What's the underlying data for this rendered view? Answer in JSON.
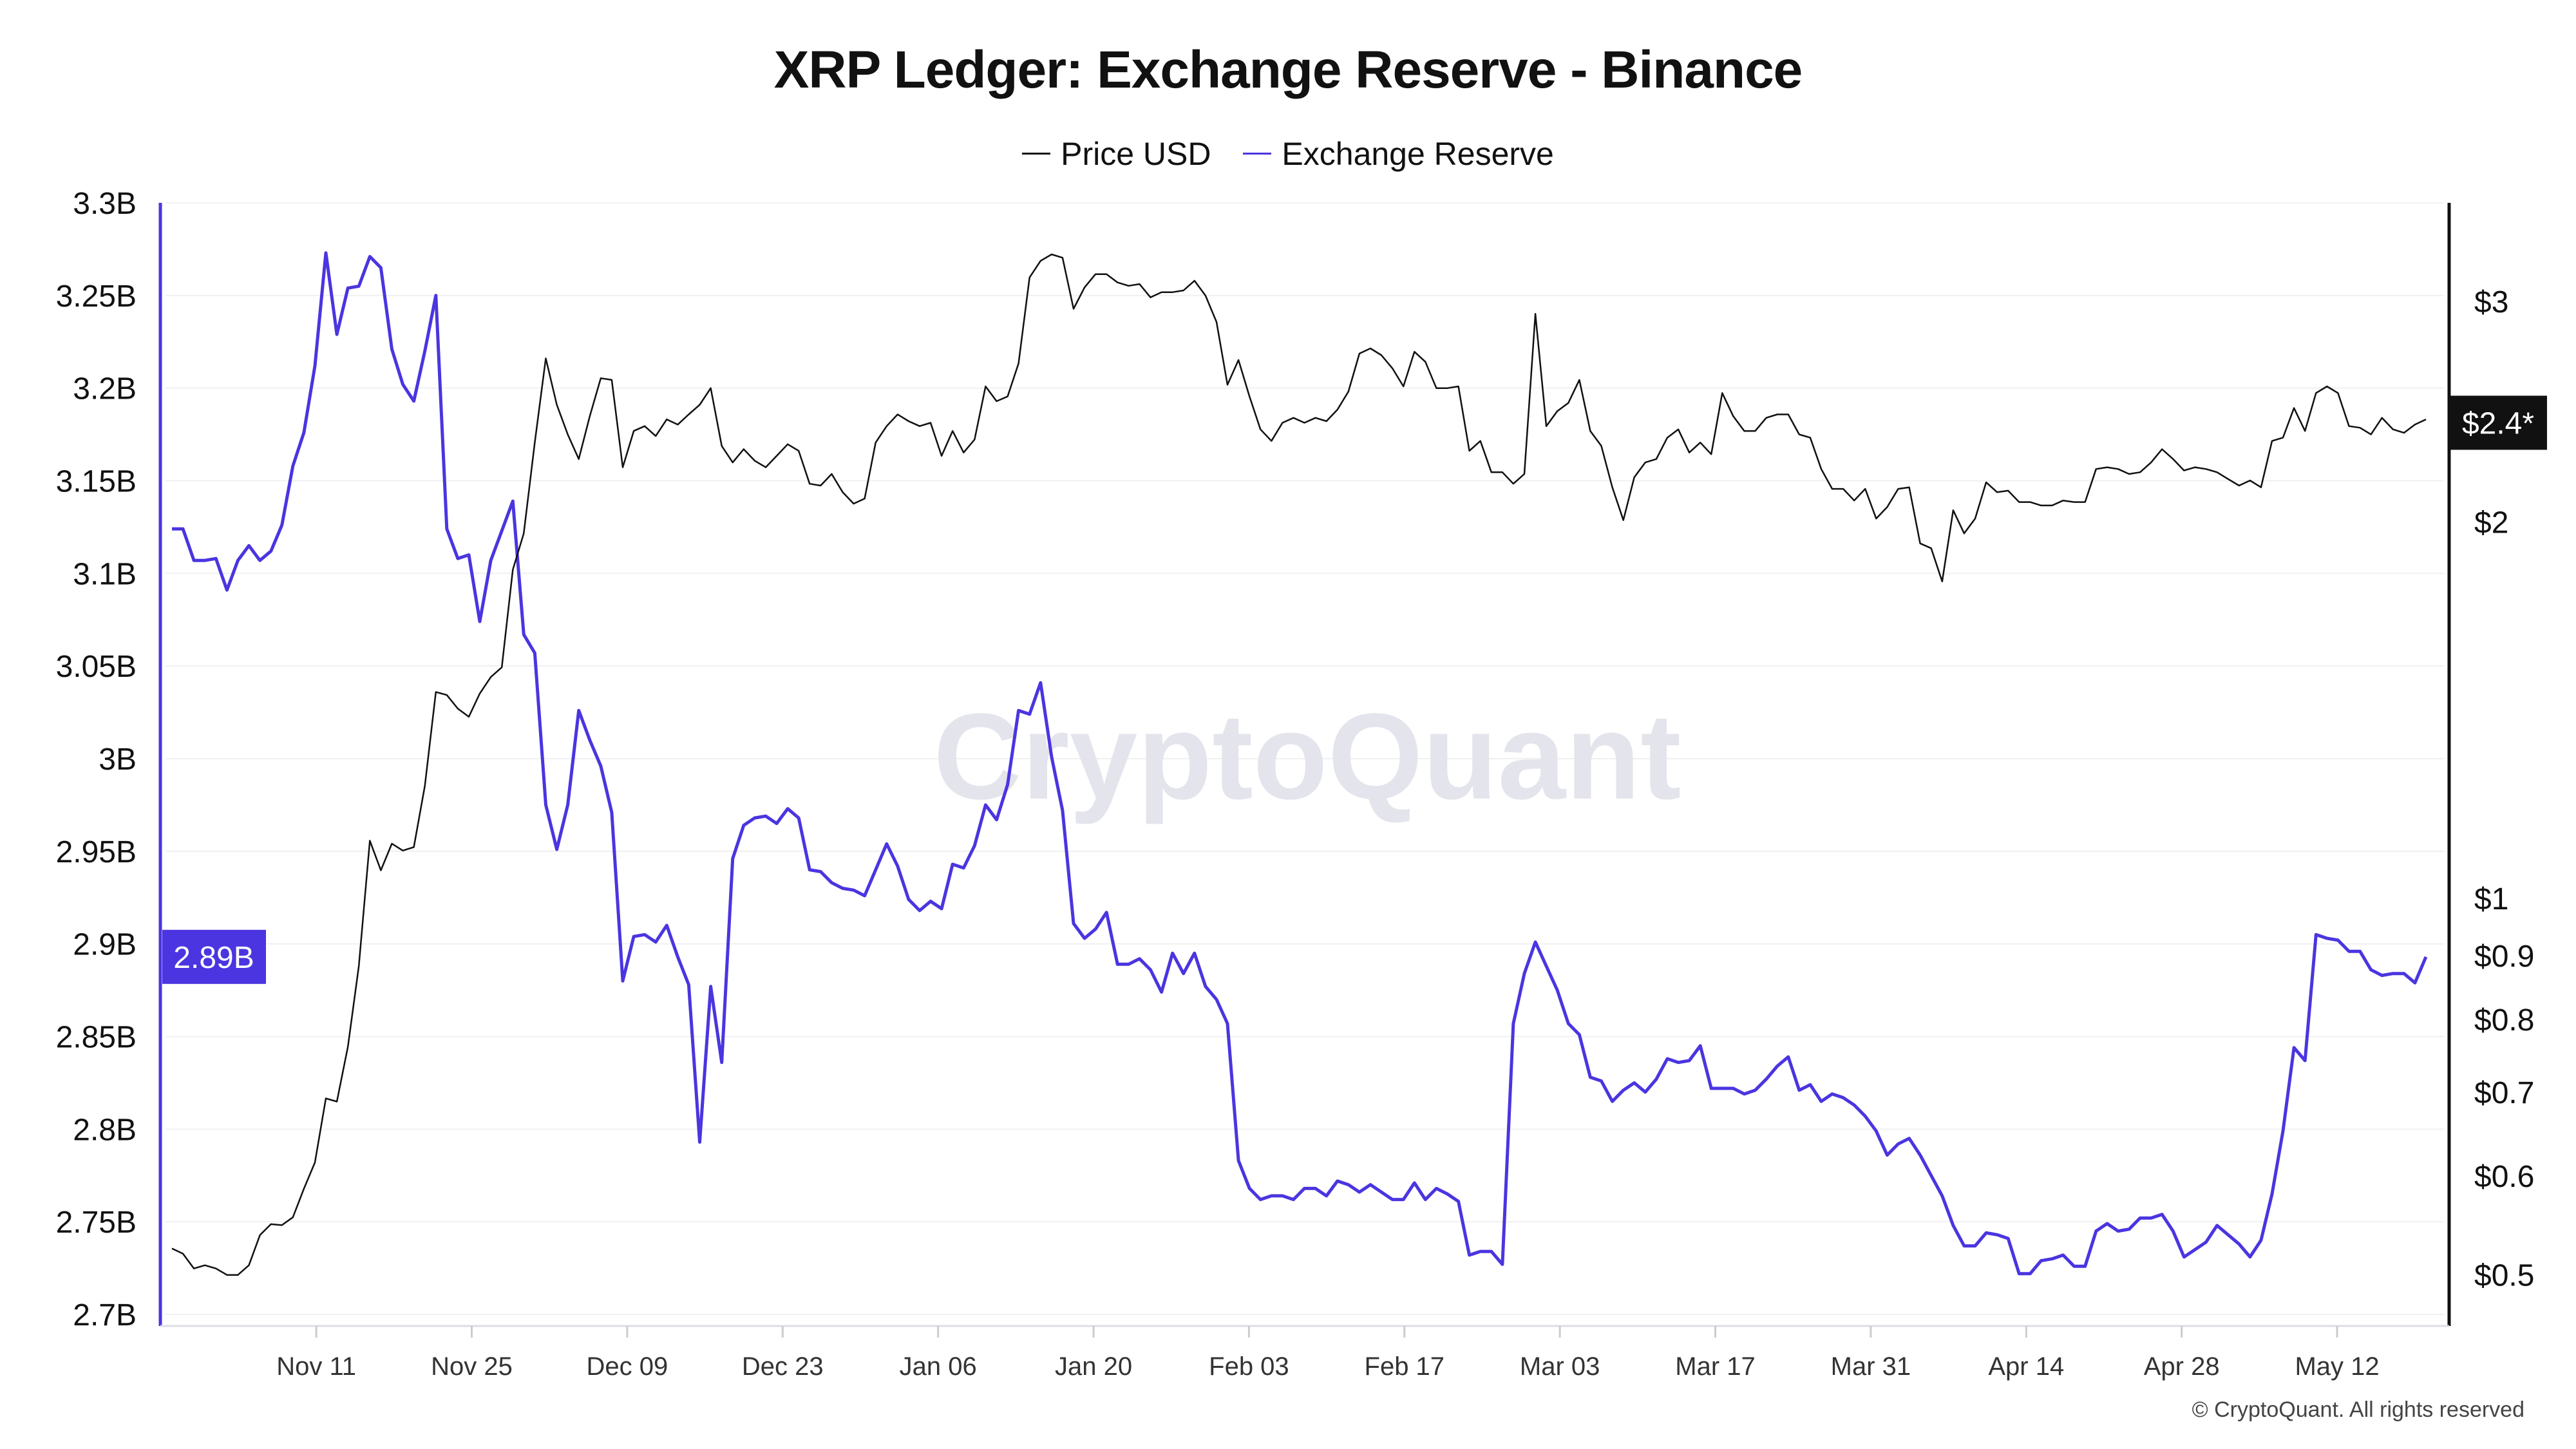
{
  "chart_data": {
    "type": "line",
    "title": "XRP Ledger: Exchange Reserve - Binance",
    "legend": {
      "placement": "top-center",
      "entries": [
        "Price USD",
        "Exchange Reserve"
      ]
    },
    "start_date": "2024-10-29",
    "end_date": "2025-05-20",
    "x_ticks": [
      "Nov 11",
      "Nov 25",
      "Dec 09",
      "Dec 23",
      "Jan 06",
      "Jan 20",
      "Feb 03",
      "Feb 17",
      "Mar 03",
      "Mar 17",
      "Mar 31",
      "Apr 14",
      "Apr 28",
      "May 12"
    ],
    "x_tick_day_offsets": [
      13,
      27,
      41,
      55,
      69,
      83,
      97,
      111,
      125,
      139,
      153,
      167,
      181,
      195
    ],
    "left_axis": {
      "ylim": [
        2.7,
        3.3
      ],
      "unit": "B",
      "ticks": [
        "3.3B",
        "3.25B",
        "3.2B",
        "3.15B",
        "3.1B",
        "3.05B",
        "3B",
        "2.95B",
        "2.9B",
        "2.85B",
        "2.8B",
        "2.75B",
        "2.7B"
      ],
      "tick_values": [
        3.3,
        3.25,
        3.2,
        3.15,
        3.1,
        3.05,
        3.0,
        2.95,
        2.9,
        2.85,
        2.8,
        2.75,
        2.7
      ],
      "current_label": "2.89B",
      "current_value": 2.893
    },
    "right_axis": {
      "scale": "log",
      "ticks": [
        "$3",
        "$2",
        "$1",
        "$0.9",
        "$0.8",
        "$0.7",
        "$0.6",
        "$0.5"
      ],
      "tick_values": [
        3,
        2,
        1,
        0.9,
        0.8,
        0.7,
        0.6,
        0.5
      ],
      "current_label": "$2.4*",
      "current_value": 2.4
    },
    "grid": true,
    "series": [
      {
        "name": "Exchange Reserve",
        "axis": "left",
        "color": "#4a35e0",
        "values": [
          3.124,
          3.124,
          3.107,
          3.107,
          3.108,
          3.091,
          3.107,
          3.115,
          3.107,
          3.112,
          3.126,
          3.158,
          3.176,
          3.212,
          3.273,
          3.229,
          3.254,
          3.255,
          3.271,
          3.265,
          3.221,
          3.202,
          3.193,
          3.22,
          3.25,
          3.124,
          3.108,
          3.11,
          3.074,
          3.107,
          3.123,
          3.139,
          3.067,
          3.057,
          2.975,
          2.951,
          2.975,
          3.026,
          3.01,
          2.996,
          2.971,
          2.88,
          2.904,
          2.905,
          2.901,
          2.91,
          2.893,
          2.878,
          2.793,
          2.877,
          2.836,
          2.946,
          2.964,
          2.968,
          2.969,
          2.965,
          2.973,
          2.968,
          2.94,
          2.939,
          2.933,
          2.93,
          2.929,
          2.926,
          2.94,
          2.954,
          2.942,
          2.924,
          2.918,
          2.923,
          2.919,
          2.943,
          2.941,
          2.953,
          2.975,
          2.967,
          2.986,
          3.026,
          3.024,
          3.041,
          3.001,
          2.972,
          2.911,
          2.903,
          2.908,
          2.917,
          2.889,
          2.889,
          2.892,
          2.886,
          2.874,
          2.895,
          2.884,
          2.895,
          2.877,
          2.87,
          2.857,
          2.783,
          2.768,
          2.762,
          2.764,
          2.764,
          2.762,
          2.768,
          2.768,
          2.764,
          2.772,
          2.77,
          2.766,
          2.77,
          2.766,
          2.762,
          2.762,
          2.771,
          2.762,
          2.768,
          2.765,
          2.761,
          2.732,
          2.734,
          2.734,
          2.727,
          2.857,
          2.884,
          2.901,
          2.888,
          2.875,
          2.857,
          2.851,
          2.828,
          2.826,
          2.815,
          2.821,
          2.825,
          2.82,
          2.827,
          2.838,
          2.836,
          2.837,
          2.845,
          2.822,
          2.822,
          2.822,
          2.819,
          2.821,
          2.827,
          2.834,
          2.839,
          2.821,
          2.824,
          2.815,
          2.819,
          2.817,
          2.813,
          2.807,
          2.799,
          2.786,
          2.792,
          2.795,
          2.786,
          2.775,
          2.764,
          2.748,
          2.737,
          2.737,
          2.744,
          2.743,
          2.741,
          2.722,
          2.722,
          2.729,
          2.73,
          2.732,
          2.726,
          2.726,
          2.745,
          2.749,
          2.745,
          2.746,
          2.752,
          2.752,
          2.754,
          2.745,
          2.731,
          2.735,
          2.739,
          2.748,
          2.743,
          2.738,
          2.731,
          2.74,
          2.765,
          2.799,
          2.844,
          2.837,
          2.905,
          2.903,
          2.902,
          2.896,
          2.896,
          2.886,
          2.883,
          2.884,
          2.884,
          2.879,
          2.893
        ]
      },
      {
        "name": "Price USD",
        "axis": "right",
        "color": "#111111",
        "values": [
          0.525,
          0.52,
          0.506,
          0.509,
          0.506,
          0.5,
          0.5,
          0.509,
          0.538,
          0.549,
          0.548,
          0.556,
          0.586,
          0.615,
          0.692,
          0.688,
          0.761,
          0.883,
          1.112,
          1.053,
          1.106,
          1.092,
          1.099,
          1.23,
          1.462,
          1.454,
          1.418,
          1.397,
          1.458,
          1.503,
          1.53,
          1.831,
          1.958,
          2.314,
          2.702,
          2.481,
          2.349,
          2.245,
          2.429,
          2.605,
          2.597,
          2.211,
          2.364,
          2.385,
          2.342,
          2.415,
          2.392,
          2.437,
          2.481,
          2.558,
          2.3,
          2.231,
          2.286,
          2.238,
          2.211,
          2.258,
          2.307,
          2.279,
          2.145,
          2.138,
          2.184,
          2.112,
          2.068,
          2.087,
          2.314,
          2.385,
          2.437,
          2.407,
          2.385,
          2.4,
          2.258,
          2.364,
          2.272,
          2.327,
          2.566,
          2.497,
          2.519,
          2.677,
          3.136,
          3.233,
          3.272,
          3.252,
          2.96,
          3.079,
          3.155,
          3.155,
          3.107,
          3.088,
          3.098,
          3.023,
          3.052,
          3.052,
          3.062,
          3.117,
          3.033,
          2.889,
          2.574,
          2.694,
          2.519,
          2.371,
          2.321,
          2.4,
          2.422,
          2.4,
          2.422,
          2.407,
          2.459,
          2.542,
          2.726,
          2.752,
          2.718,
          2.653,
          2.566,
          2.735,
          2.685,
          2.558,
          2.558,
          2.566,
          2.279,
          2.321,
          2.191,
          2.191,
          2.145,
          2.184,
          2.933,
          2.385,
          2.452,
          2.489,
          2.597,
          2.364,
          2.3,
          2.131,
          2.006,
          2.171,
          2.231,
          2.245,
          2.335,
          2.371,
          2.272,
          2.314,
          2.265,
          2.535,
          2.429,
          2.364,
          2.364,
          2.422,
          2.437,
          2.437,
          2.349,
          2.335,
          2.204,
          2.125,
          2.125,
          2.08,
          2.125,
          2.012,
          2.055,
          2.125,
          2.131,
          1.922,
          1.905,
          1.792,
          2.043,
          1.958,
          2.012,
          2.151,
          2.112,
          2.118,
          2.074,
          2.074,
          2.061,
          2.061,
          2.08,
          2.074,
          2.074,
          2.204,
          2.211,
          2.204,
          2.184,
          2.191,
          2.231,
          2.286,
          2.245,
          2.198,
          2.211,
          2.204,
          2.191,
          2.164,
          2.138,
          2.158,
          2.131,
          2.321,
          2.335,
          2.466,
          2.364,
          2.535,
          2.566,
          2.535,
          2.385,
          2.378,
          2.349,
          2.422,
          2.371,
          2.356,
          2.392,
          2.415
        ]
      }
    ]
  },
  "watermark": "CryptoQuant",
  "copyright": "© CryptoQuant. All rights reserved"
}
